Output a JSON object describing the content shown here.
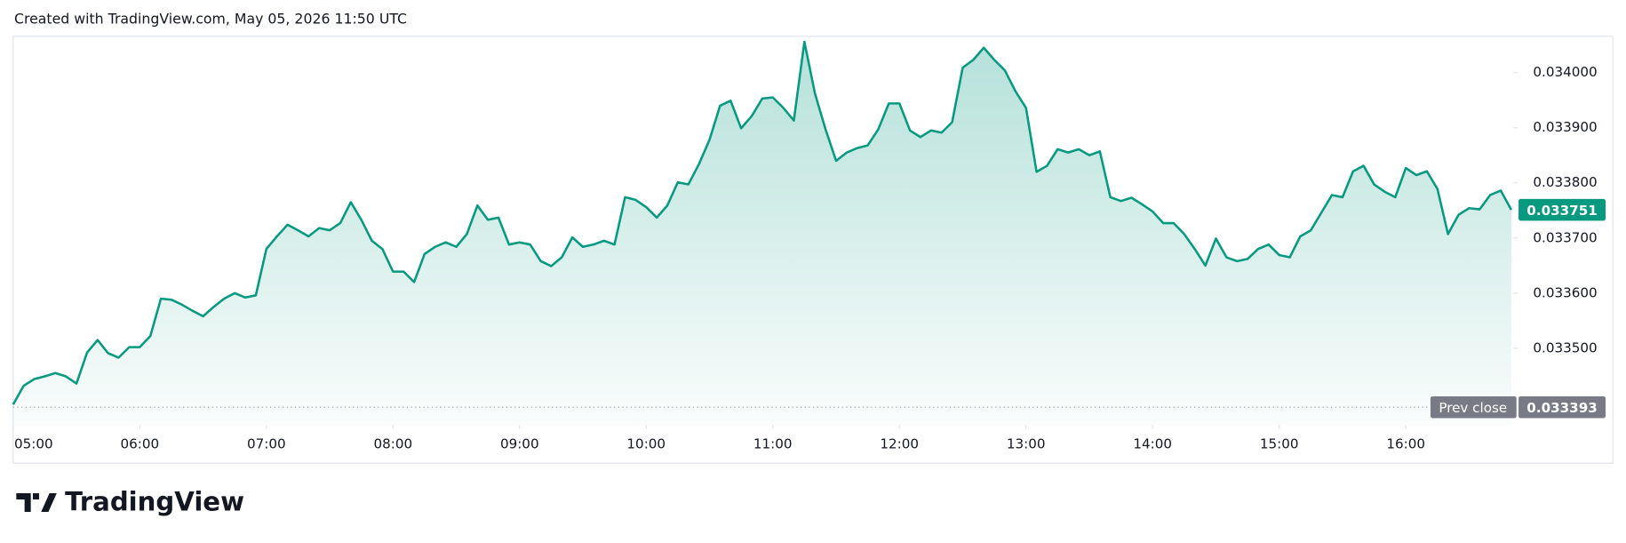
{
  "header": {
    "caption": "Created with TradingView.com, May 05, 2026 11:50 UTC"
  },
  "footer": {
    "brand": "TradingView"
  },
  "chart_data": {
    "type": "area",
    "x": [
      "05:00",
      "05:05",
      "05:10",
      "05:15",
      "05:20",
      "05:25",
      "05:30",
      "05:35",
      "05:40",
      "05:45",
      "05:50",
      "05:55",
      "06:00",
      "06:05",
      "06:10",
      "06:15",
      "06:20",
      "06:25",
      "06:30",
      "06:35",
      "06:40",
      "06:45",
      "06:50",
      "06:55",
      "07:00",
      "07:05",
      "07:10",
      "07:15",
      "07:20",
      "07:25",
      "07:30",
      "07:35",
      "07:40",
      "07:45",
      "07:50",
      "07:55",
      "08:00",
      "08:05",
      "08:10",
      "08:15",
      "08:20",
      "08:25",
      "08:30",
      "08:35",
      "08:40",
      "08:45",
      "08:50",
      "08:55",
      "09:00",
      "09:05",
      "09:10",
      "09:15",
      "09:20",
      "09:25",
      "09:30",
      "09:35",
      "09:40",
      "09:45",
      "09:50",
      "09:55",
      "10:00",
      "10:05",
      "10:10",
      "10:15",
      "10:20",
      "10:25",
      "10:30",
      "10:35",
      "10:40",
      "10:45",
      "10:50",
      "10:55",
      "11:00",
      "11:05",
      "11:10",
      "11:15",
      "11:20",
      "11:25",
      "11:30",
      "11:35",
      "11:40",
      "11:45",
      "11:50",
      "11:55",
      "12:00",
      "12:05",
      "12:10",
      "12:15",
      "12:20",
      "12:25",
      "12:30",
      "12:35",
      "12:40",
      "12:45",
      "12:50",
      "12:55",
      "13:00",
      "13:05",
      "13:10",
      "13:15",
      "13:20",
      "13:25",
      "13:30",
      "13:35",
      "13:40",
      "13:45",
      "13:50",
      "13:55",
      "14:00",
      "14:05",
      "14:10",
      "14:15",
      "14:20",
      "14:25",
      "14:30",
      "14:35",
      "14:40",
      "14:45",
      "14:50",
      "14:55",
      "15:00",
      "15:05",
      "15:10",
      "15:15",
      "15:20",
      "15:25",
      "15:30",
      "15:35",
      "15:40",
      "15:45",
      "15:50",
      "15:55",
      "16:00",
      "16:05",
      "16:10",
      "16:15",
      "16:20",
      "16:25",
      "16:30",
      "16:35",
      "16:40",
      "16:45",
      "16:50"
    ],
    "series": [
      {
        "color": "#089981",
        "values": [
          0.033398,
          0.033432,
          0.033444,
          0.033449,
          0.033455,
          0.033449,
          0.033436,
          0.033492,
          0.033515,
          0.033491,
          0.033483,
          0.033502,
          0.033502,
          0.033522,
          0.03359,
          0.033588,
          0.033579,
          0.033568,
          0.033558,
          0.033575,
          0.03359,
          0.0336,
          0.033592,
          0.033596,
          0.03368,
          0.033703,
          0.033724,
          0.033714,
          0.033703,
          0.033718,
          0.033714,
          0.033727,
          0.033765,
          0.033733,
          0.033695,
          0.03368,
          0.033639,
          0.033639,
          0.03362,
          0.033671,
          0.033684,
          0.033692,
          0.033684,
          0.033707,
          0.033759,
          0.033733,
          0.033737,
          0.033688,
          0.033692,
          0.033688,
          0.033658,
          0.033649,
          0.033665,
          0.033701,
          0.033684,
          0.033688,
          0.033695,
          0.033688,
          0.033774,
          0.033769,
          0.033756,
          0.033737,
          0.033759,
          0.033801,
          0.033797,
          0.033834,
          0.033878,
          0.03394,
          0.033949,
          0.033899,
          0.033921,
          0.033953,
          0.033955,
          0.033936,
          0.033913,
          0.034056,
          0.033962,
          0.033897,
          0.03384,
          0.033855,
          0.033863,
          0.033868,
          0.033897,
          0.033944,
          0.033944,
          0.033895,
          0.033883,
          0.033895,
          0.033891,
          0.03391,
          0.034009,
          0.034023,
          0.034045,
          0.034023,
          0.034004,
          0.033966,
          0.033936,
          0.03382,
          0.033831,
          0.033861,
          0.033855,
          0.033861,
          0.03385,
          0.033857,
          0.033774,
          0.033767,
          0.033773,
          0.033761,
          0.033748,
          0.033727,
          0.033727,
          0.033707,
          0.03368,
          0.03365,
          0.033699,
          0.033665,
          0.033658,
          0.033662,
          0.03368,
          0.033688,
          0.033669,
          0.033665,
          0.033703,
          0.033714,
          0.033746,
          0.033778,
          0.033774,
          0.033821,
          0.033831,
          0.033797,
          0.033784,
          0.033774,
          0.033827,
          0.033814,
          0.033821,
          0.033789,
          0.033707,
          0.033742,
          0.033754,
          0.033752,
          0.033778,
          0.033786,
          0.033751
        ]
      }
    ],
    "xlim": [
      "05:00",
      "16:50"
    ],
    "xticks": [
      "05:00",
      "06:00",
      "07:00",
      "08:00",
      "09:00",
      "10:00",
      "11:00",
      "12:00",
      "13:00",
      "14:00",
      "15:00",
      "16:00"
    ],
    "ylim": [
      0.033361,
      0.034064
    ],
    "yticks": [
      {
        "value": 0.0335,
        "label": "0.033500"
      },
      {
        "value": 0.0336,
        "label": "0.033600"
      },
      {
        "value": 0.0337,
        "label": "0.033700"
      },
      {
        "value": 0.0338,
        "label": "0.033800"
      },
      {
        "value": 0.0339,
        "label": "0.033900"
      },
      {
        "value": 0.034,
        "label": "0.034000"
      }
    ],
    "prev_close": {
      "label": "Prev close",
      "value": 0.033393
    }
  }
}
